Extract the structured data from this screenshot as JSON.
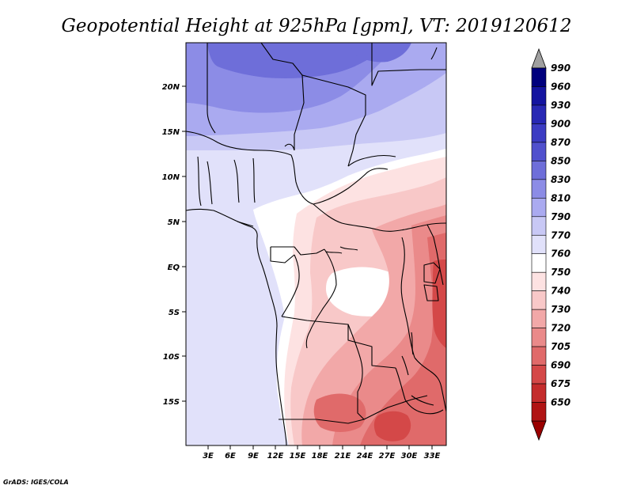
{
  "title": "Geopotential Height at 925hPa [gpm], VT: 2019120612",
  "credit": "GrADS: IGES/COLA",
  "map": {
    "variable": "Geopotential Height",
    "level": "925hPa",
    "units": "gpm",
    "valid_time": "2019120612",
    "lat_ticks": [
      "20N",
      "15N",
      "10N",
      "5N",
      "EQ",
      "5S",
      "10S",
      "15S"
    ],
    "lon_ticks": [
      "3E",
      "6E",
      "9E",
      "12E",
      "15E",
      "18E",
      "21E",
      "24E",
      "27E",
      "30E",
      "33E"
    ]
  },
  "colorbar": {
    "levels": [
      {
        "label": "990",
        "color": "#00007d"
      },
      {
        "label": "960",
        "color": "#1414a0"
      },
      {
        "label": "930",
        "color": "#2828b4"
      },
      {
        "label": "900",
        "color": "#3c3cc3"
      },
      {
        "label": "870",
        "color": "#5050cd"
      },
      {
        "label": "850",
        "color": "#6e6ed9"
      },
      {
        "label": "830",
        "color": "#8c8ce6"
      },
      {
        "label": "810",
        "color": "#aaaaf0"
      },
      {
        "label": "790",
        "color": "#c8c8f5"
      },
      {
        "label": "770",
        "color": "#e1e1fa"
      },
      {
        "label": "760",
        "color": "#ffffff"
      },
      {
        "label": "750",
        "color": "#fde2e2"
      },
      {
        "label": "740",
        "color": "#f8c8c8"
      },
      {
        "label": "730",
        "color": "#f2a8a8"
      },
      {
        "label": "720",
        "color": "#ea8a8a"
      },
      {
        "label": "705",
        "color": "#e06a6a"
      },
      {
        "label": "690",
        "color": "#d44848"
      },
      {
        "label": "675",
        "color": "#c42c2c"
      },
      {
        "label": "650",
        "color": "#b01414"
      }
    ],
    "top_arrow_color": "#a0a0a0",
    "bottom_arrow_color": "#9a0000"
  }
}
